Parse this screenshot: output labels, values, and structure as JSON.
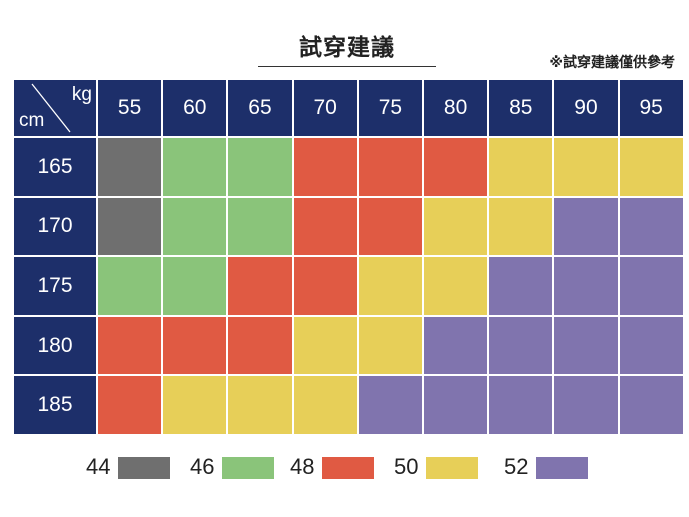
{
  "title": "試穿建議",
  "note": "※試穿建議僅供參考",
  "corner": {
    "weight_unit": "kg",
    "height_unit": "cm"
  },
  "colors": {
    "header": "#1d2f6a",
    "44": "#6f6f6f",
    "46": "#8ac47a",
    "48": "#e05a43",
    "50": "#e7cf58",
    "52": "#8074ae"
  },
  "chart_data": {
    "type": "heatmap",
    "title": "試穿建議",
    "x_unit": "kg",
    "y_unit": "cm",
    "x": [
      "55",
      "60",
      "65",
      "70",
      "75",
      "80",
      "85",
      "90",
      "95"
    ],
    "y": [
      "165",
      "170",
      "175",
      "180",
      "185"
    ],
    "values": [
      [
        44,
        46,
        46,
        48,
        48,
        48,
        50,
        50,
        50
      ],
      [
        44,
        46,
        46,
        48,
        48,
        50,
        50,
        52,
        52
      ],
      [
        46,
        46,
        48,
        48,
        50,
        50,
        52,
        52,
        52
      ],
      [
        48,
        48,
        48,
        50,
        50,
        52,
        52,
        52,
        52
      ],
      [
        48,
        50,
        50,
        50,
        52,
        52,
        52,
        52,
        52
      ]
    ],
    "legend": [
      "44",
      "46",
      "48",
      "50",
      "52"
    ]
  }
}
